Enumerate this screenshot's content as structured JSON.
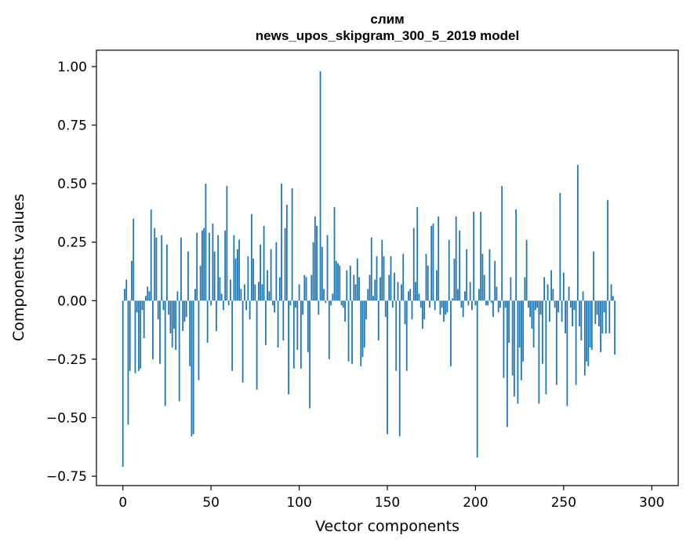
{
  "chart_data": {
    "type": "bar",
    "title_line1": "слим",
    "title_line2": "news_upos_skipgram_300_5_2019 model",
    "xlabel": "Vector components",
    "ylabel": "Components values",
    "xlim": [
      -15,
      315
    ],
    "ylim": [
      -0.79,
      1.07
    ],
    "xticks": [
      0,
      50,
      100,
      150,
      200,
      250,
      300
    ],
    "xtick_labels": [
      "0",
      "50",
      "100",
      "150",
      "200",
      "250",
      "300"
    ],
    "yticks": [
      -0.75,
      -0.5,
      -0.25,
      0.0,
      0.25,
      0.5,
      0.75,
      1.0
    ],
    "ytick_labels": [
      "−0.75",
      "−0.50",
      "−0.25",
      "0.00",
      "0.25",
      "0.50",
      "0.75",
      "1.00"
    ],
    "bar_color": "#1f77b4",
    "values": [
      -0.71,
      0.05,
      0.09,
      -0.53,
      -0.3,
      0.17,
      0.35,
      -0.31,
      -0.05,
      -0.3,
      -0.29,
      -0.04,
      -0.16,
      0.02,
      0.06,
      0.04,
      0.39,
      -0.25,
      0.31,
      0.27,
      -0.08,
      -0.27,
      0.28,
      -0.04,
      -0.45,
      0.24,
      -0.06,
      -0.14,
      -0.2,
      -0.12,
      -0.21,
      0.04,
      -0.43,
      0.27,
      -0.13,
      -0.09,
      -0.07,
      0.21,
      -0.28,
      -0.58,
      -0.57,
      0.05,
      0.29,
      -0.34,
      0.15,
      0.3,
      0.31,
      0.5,
      -0.18,
      0.29,
      -0.02,
      0.33,
      0.21,
      -0.13,
      0.28,
      0.1,
      0.03,
      -0.04,
      0.3,
      0.49,
      -0.02,
      0.09,
      -0.3,
      0.28,
      0.18,
      0.22,
      0.26,
      0.05,
      -0.35,
      0.07,
      -0.04,
      0.19,
      -0.08,
      0.37,
      0.18,
      0.07,
      -0.38,
      0.08,
      0.24,
      0.07,
      0.32,
      -0.19,
      0.13,
      0.04,
      0.22,
      -0.02,
      -0.05,
      0.25,
      -0.2,
      0.1,
      0.5,
      -0.17,
      0.31,
      0.41,
      -0.4,
      -0.02,
      0.48,
      -0.29,
      -0.03,
      -0.21,
      0.07,
      -0.29,
      -0.06,
      0.11,
      0.1,
      -0.22,
      -0.46,
      0.11,
      0.25,
      0.36,
      0.32,
      -0.06,
      0.98,
      0.23,
      0.05,
      -0.01,
      0.28,
      -0.25,
      -0.02,
      0.03,
      0.4,
      0.17,
      0.16,
      0.15,
      -0.02,
      -0.03,
      -0.09,
      0.13,
      -0.26,
      0.15,
      -0.27,
      0.11,
      0.07,
      0.18,
      0.1,
      -0.28,
      -0.24,
      -0.2,
      -0.08,
      0.05,
      0.11,
      0.27,
      0.02,
      0.09,
      0.19,
      -0.17,
      0.1,
      0.26,
      0.19,
      -0.07,
      -0.57,
      0.11,
      0.19,
      -0.03,
      0.12,
      -0.3,
      0.08,
      -0.58,
      0.07,
      0.2,
      -0.1,
      -0.3,
      0.04,
      0.05,
      -0.08,
      0.31,
      0.08,
      0.4,
      0.03,
      -0.03,
      -0.12,
      -0.08,
      0.2,
      0.15,
      -0.03,
      0.32,
      0.33,
      -0.04,
      0.13,
      0.36,
      -0.06,
      -0.03,
      -0.09,
      -0.06,
      -0.05,
      0.26,
      -0.28,
      0.01,
      0.18,
      0.36,
      0.05,
      0.3,
      -0.03,
      -0.07,
      0.04,
      0.22,
      -0.02,
      0.08,
      -0.04,
      0.38,
      -0.02,
      -0.67,
      0.05,
      0.38,
      0.2,
      0.11,
      -0.02,
      -0.02,
      0.22,
      -0.01,
      -0.07,
      0.17,
      0.06,
      -0.05,
      -0.03,
      0.49,
      -0.33,
      -0.03,
      -0.54,
      -0.18,
      0.1,
      -0.32,
      -0.41,
      0.39,
      -0.44,
      -0.2,
      -0.34,
      -0.26,
      0.1,
      0.26,
      -0.03,
      -0.07,
      -0.12,
      -0.2,
      -0.04,
      -0.03,
      -0.44,
      -0.06,
      -0.27,
      0.1,
      -0.4,
      0.07,
      -0.09,
      0.13,
      0.05,
      -0.03,
      -0.36,
      -0.05,
      0.46,
      -0.09,
      0.12,
      -0.14,
      -0.45,
      0.06,
      -0.03,
      -0.11,
      -0.04,
      -0.36,
      0.58,
      -0.11,
      -0.17,
      0.04,
      -0.32,
      -0.26,
      -0.28,
      -0.2,
      -0.21,
      0.21,
      -0.1,
      -0.06,
      -0.11,
      -0.22,
      -0.14,
      -0.05,
      -0.14,
      0.43,
      -0.14,
      0.07,
      0.02,
      -0.23
    ]
  }
}
